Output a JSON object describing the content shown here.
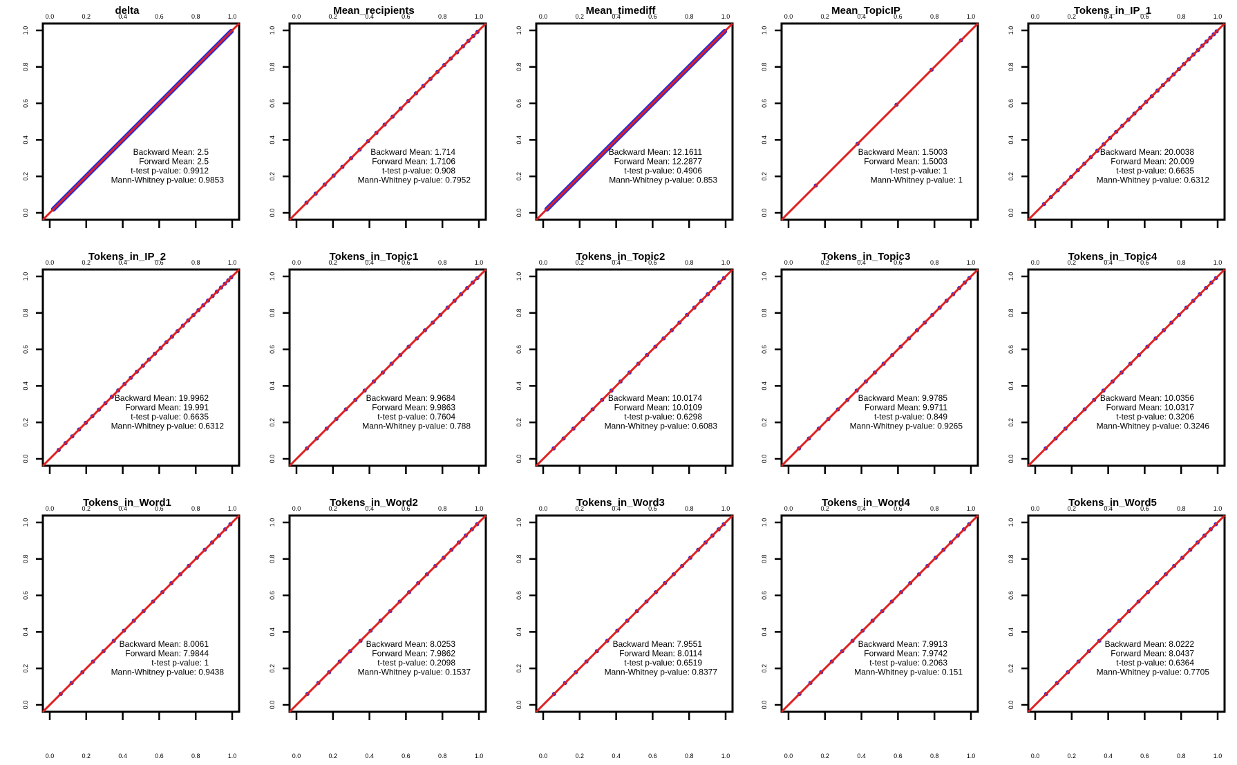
{
  "chart_data": [
    {
      "type": "scatter",
      "title": "delta",
      "xlim": [
        0,
        1
      ],
      "ylim": [
        0,
        1
      ],
      "dense": true,
      "n_points": 0,
      "stats": [
        "Backward Mean: 2.5",
        "Forward Mean: 2.5",
        "t-test p-value: 0.9912",
        "Mann-Whitney p-value: 0.9853"
      ]
    },
    {
      "type": "scatter",
      "title": "Mean_recipients",
      "xlim": [
        0,
        1
      ],
      "ylim": [
        0,
        1
      ],
      "dense": false,
      "n_points": 24,
      "stats": [
        "Backward Mean: 1.714",
        "Forward Mean: 1.7106",
        "t-test p-value: 0.908",
        "Mann-Whitney p-value: 0.7952"
      ]
    },
    {
      "type": "scatter",
      "title": "Mean_timediff",
      "xlim": [
        0,
        1
      ],
      "ylim": [
        0,
        1
      ],
      "dense": true,
      "n_points": 0,
      "stats": [
        "Backward Mean: 12.1611",
        "Forward Mean: 12.2877",
        "t-test p-value: 0.4906",
        "Mann-Whitney p-value: 0.853"
      ]
    },
    {
      "type": "scatter",
      "title": "Mean_TopicIP",
      "xlim": [
        0,
        1
      ],
      "ylim": [
        0,
        1
      ],
      "dense": false,
      "n_points": 5,
      "stats": [
        "Backward Mean: 1.5003",
        "Forward Mean: 1.5003",
        "t-test p-value: 1",
        "Mann-Whitney p-value: 1"
      ]
    },
    {
      "type": "scatter",
      "title": "Tokens_in_IP_1",
      "xlim": [
        0,
        1
      ],
      "ylim": [
        0,
        1
      ],
      "dense": false,
      "n_points": 32,
      "stats": [
        "Backward Mean: 20.0038",
        "Forward Mean: 20.009",
        "t-test p-value: 0.6635",
        "Mann-Whitney p-value: 0.6312"
      ]
    },
    {
      "type": "scatter",
      "title": "Tokens_in_IP_2",
      "xlim": [
        0,
        1
      ],
      "ylim": [
        0,
        1
      ],
      "dense": false,
      "n_points": 32,
      "stats": [
        "Backward Mean: 19.9962",
        "Forward Mean: 19.991",
        "t-test p-value: 0.6635",
        "Mann-Whitney p-value: 0.6312"
      ]
    },
    {
      "type": "scatter",
      "title": "Tokens_in_Topic1",
      "xlim": [
        0,
        1
      ],
      "ylim": [
        0,
        1
      ],
      "dense": false,
      "n_points": 22,
      "stats": [
        "Backward Mean: 9.9684",
        "Forward Mean: 9.9863",
        "t-test p-value: 0.7604",
        "Mann-Whitney p-value: 0.788"
      ]
    },
    {
      "type": "scatter",
      "title": "Tokens_in_Topic2",
      "xlim": [
        0,
        1
      ],
      "ylim": [
        0,
        1
      ],
      "dense": false,
      "n_points": 22,
      "stats": [
        "Backward Mean: 10.0174",
        "Forward Mean: 10.0109",
        "t-test p-value: 0.6298",
        "Mann-Whitney p-value: 0.6083"
      ]
    },
    {
      "type": "scatter",
      "title": "Tokens_in_Topic3",
      "xlim": [
        0,
        1
      ],
      "ylim": [
        0,
        1
      ],
      "dense": false,
      "n_points": 22,
      "stats": [
        "Backward Mean: 9.9785",
        "Forward Mean: 9.9711",
        "t-test p-value: 0.849",
        "Mann-Whitney p-value: 0.9265"
      ]
    },
    {
      "type": "scatter",
      "title": "Tokens_in_Topic4",
      "xlim": [
        0,
        1
      ],
      "ylim": [
        0,
        1
      ],
      "dense": false,
      "n_points": 22,
      "stats": [
        "Backward Mean: 10.0356",
        "Forward Mean: 10.0317",
        "t-test p-value: 0.3206",
        "Mann-Whitney p-value: 0.3246"
      ]
    },
    {
      "type": "scatter",
      "title": "Tokens_in_Word1",
      "xlim": [
        0,
        1
      ],
      "ylim": [
        0,
        1
      ],
      "dense": false,
      "n_points": 20,
      "stats": [
        "Backward Mean: 8.0061",
        "Forward Mean: 7.9844",
        "t-test p-value: 1",
        "Mann-Whitney p-value: 0.9438"
      ]
    },
    {
      "type": "scatter",
      "title": "Tokens_in_Word2",
      "xlim": [
        0,
        1
      ],
      "ylim": [
        0,
        1
      ],
      "dense": false,
      "n_points": 20,
      "stats": [
        "Backward Mean: 8.0253",
        "Forward Mean: 7.9862",
        "t-test p-value: 0.2098",
        "Mann-Whitney p-value: 0.1537"
      ]
    },
    {
      "type": "scatter",
      "title": "Tokens_in_Word3",
      "xlim": [
        0,
        1
      ],
      "ylim": [
        0,
        1
      ],
      "dense": false,
      "n_points": 20,
      "stats": [
        "Backward Mean: 7.9551",
        "Forward Mean: 8.0114",
        "t-test p-value: 0.6519",
        "Mann-Whitney p-value: 0.8377"
      ]
    },
    {
      "type": "scatter",
      "title": "Tokens_in_Word4",
      "xlim": [
        0,
        1
      ],
      "ylim": [
        0,
        1
      ],
      "dense": false,
      "n_points": 20,
      "stats": [
        "Backward Mean: 7.9913",
        "Forward Mean: 7.9742",
        "t-test p-value: 0.2063",
        "Mann-Whitney p-value: 0.151"
      ]
    },
    {
      "type": "scatter",
      "title": "Tokens_in_Word5",
      "xlim": [
        0,
        1
      ],
      "ylim": [
        0,
        1
      ],
      "dense": false,
      "n_points": 20,
      "stats": [
        "Backward Mean: 8.0222",
        "Forward Mean: 8.0437",
        "t-test p-value: 0.6364",
        "Mann-Whitney p-value: 0.7705"
      ]
    }
  ],
  "tick_labels": [
    "0.0",
    "0.2",
    "0.4",
    "0.6",
    "0.8",
    "1.0"
  ],
  "tick_values": [
    0,
    0.2,
    0.4,
    0.6,
    0.8,
    1.0
  ],
  "colors": {
    "points": "#2b2bd6",
    "reference_line": "#e02020",
    "frame": "#000000"
  }
}
